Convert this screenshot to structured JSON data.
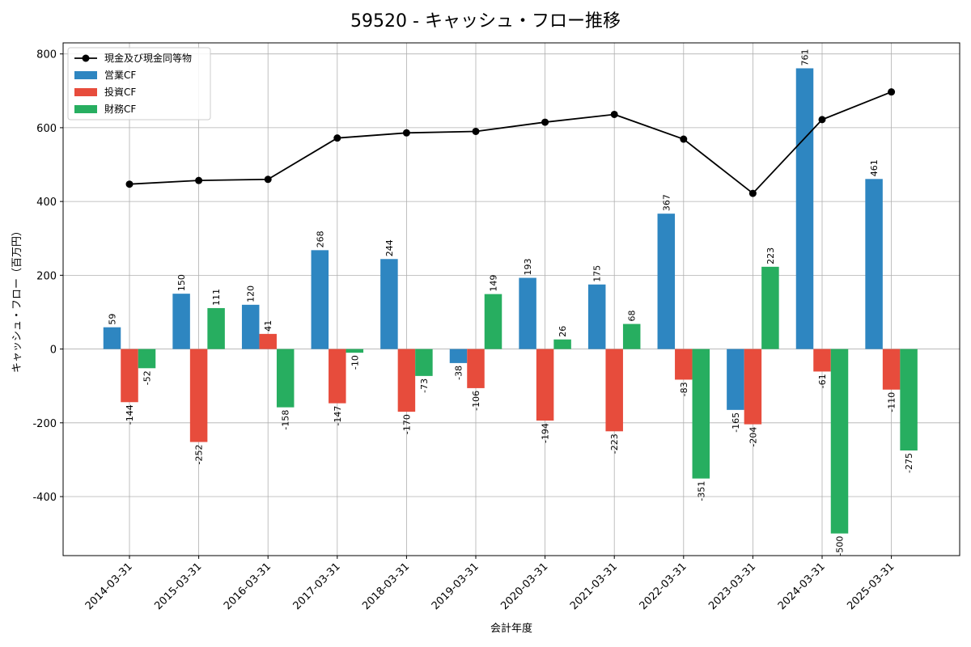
{
  "chart_data": {
    "type": "bar",
    "title": "59520 - キャッシュ・フロー推移",
    "xlabel": "会計年度",
    "ylabel": "キャッシュ・フロー（百万円）",
    "ylim": [
      -560,
      830
    ],
    "yticks": [
      -400,
      -200,
      0,
      200,
      400,
      600,
      800
    ],
    "grid": true,
    "legend_position": "top-left",
    "categories": [
      "2014-03-31",
      "2015-03-31",
      "2016-03-31",
      "2017-03-31",
      "2018-03-31",
      "2019-03-31",
      "2020-03-31",
      "2021-03-31",
      "2022-03-31",
      "2023-03-31",
      "2024-03-31",
      "2025-03-31"
    ],
    "series": [
      {
        "name": "営業CF",
        "type": "bar",
        "color": "#2e86c1",
        "values": [
          59,
          150,
          120,
          268,
          244,
          -38,
          193,
          175,
          367,
          -165,
          761,
          461
        ]
      },
      {
        "name": "投資CF",
        "type": "bar",
        "color": "#e74c3c",
        "values": [
          -144,
          -252,
          41,
          -147,
          -170,
          -106,
          -194,
          -223,
          -83,
          -204,
          -61,
          -110
        ]
      },
      {
        "name": "財務CF",
        "type": "bar",
        "color": "#27ae60",
        "values": [
          -52,
          111,
          -158,
          -10,
          -73,
          149,
          26,
          68,
          -351,
          223,
          -500,
          -275
        ]
      },
      {
        "name": "現金及び現金同等物",
        "type": "line",
        "color": "#000000",
        "values": [
          447,
          457,
          460,
          572,
          586,
          590,
          615,
          636,
          569,
          422,
          622,
          697
        ]
      }
    ]
  }
}
